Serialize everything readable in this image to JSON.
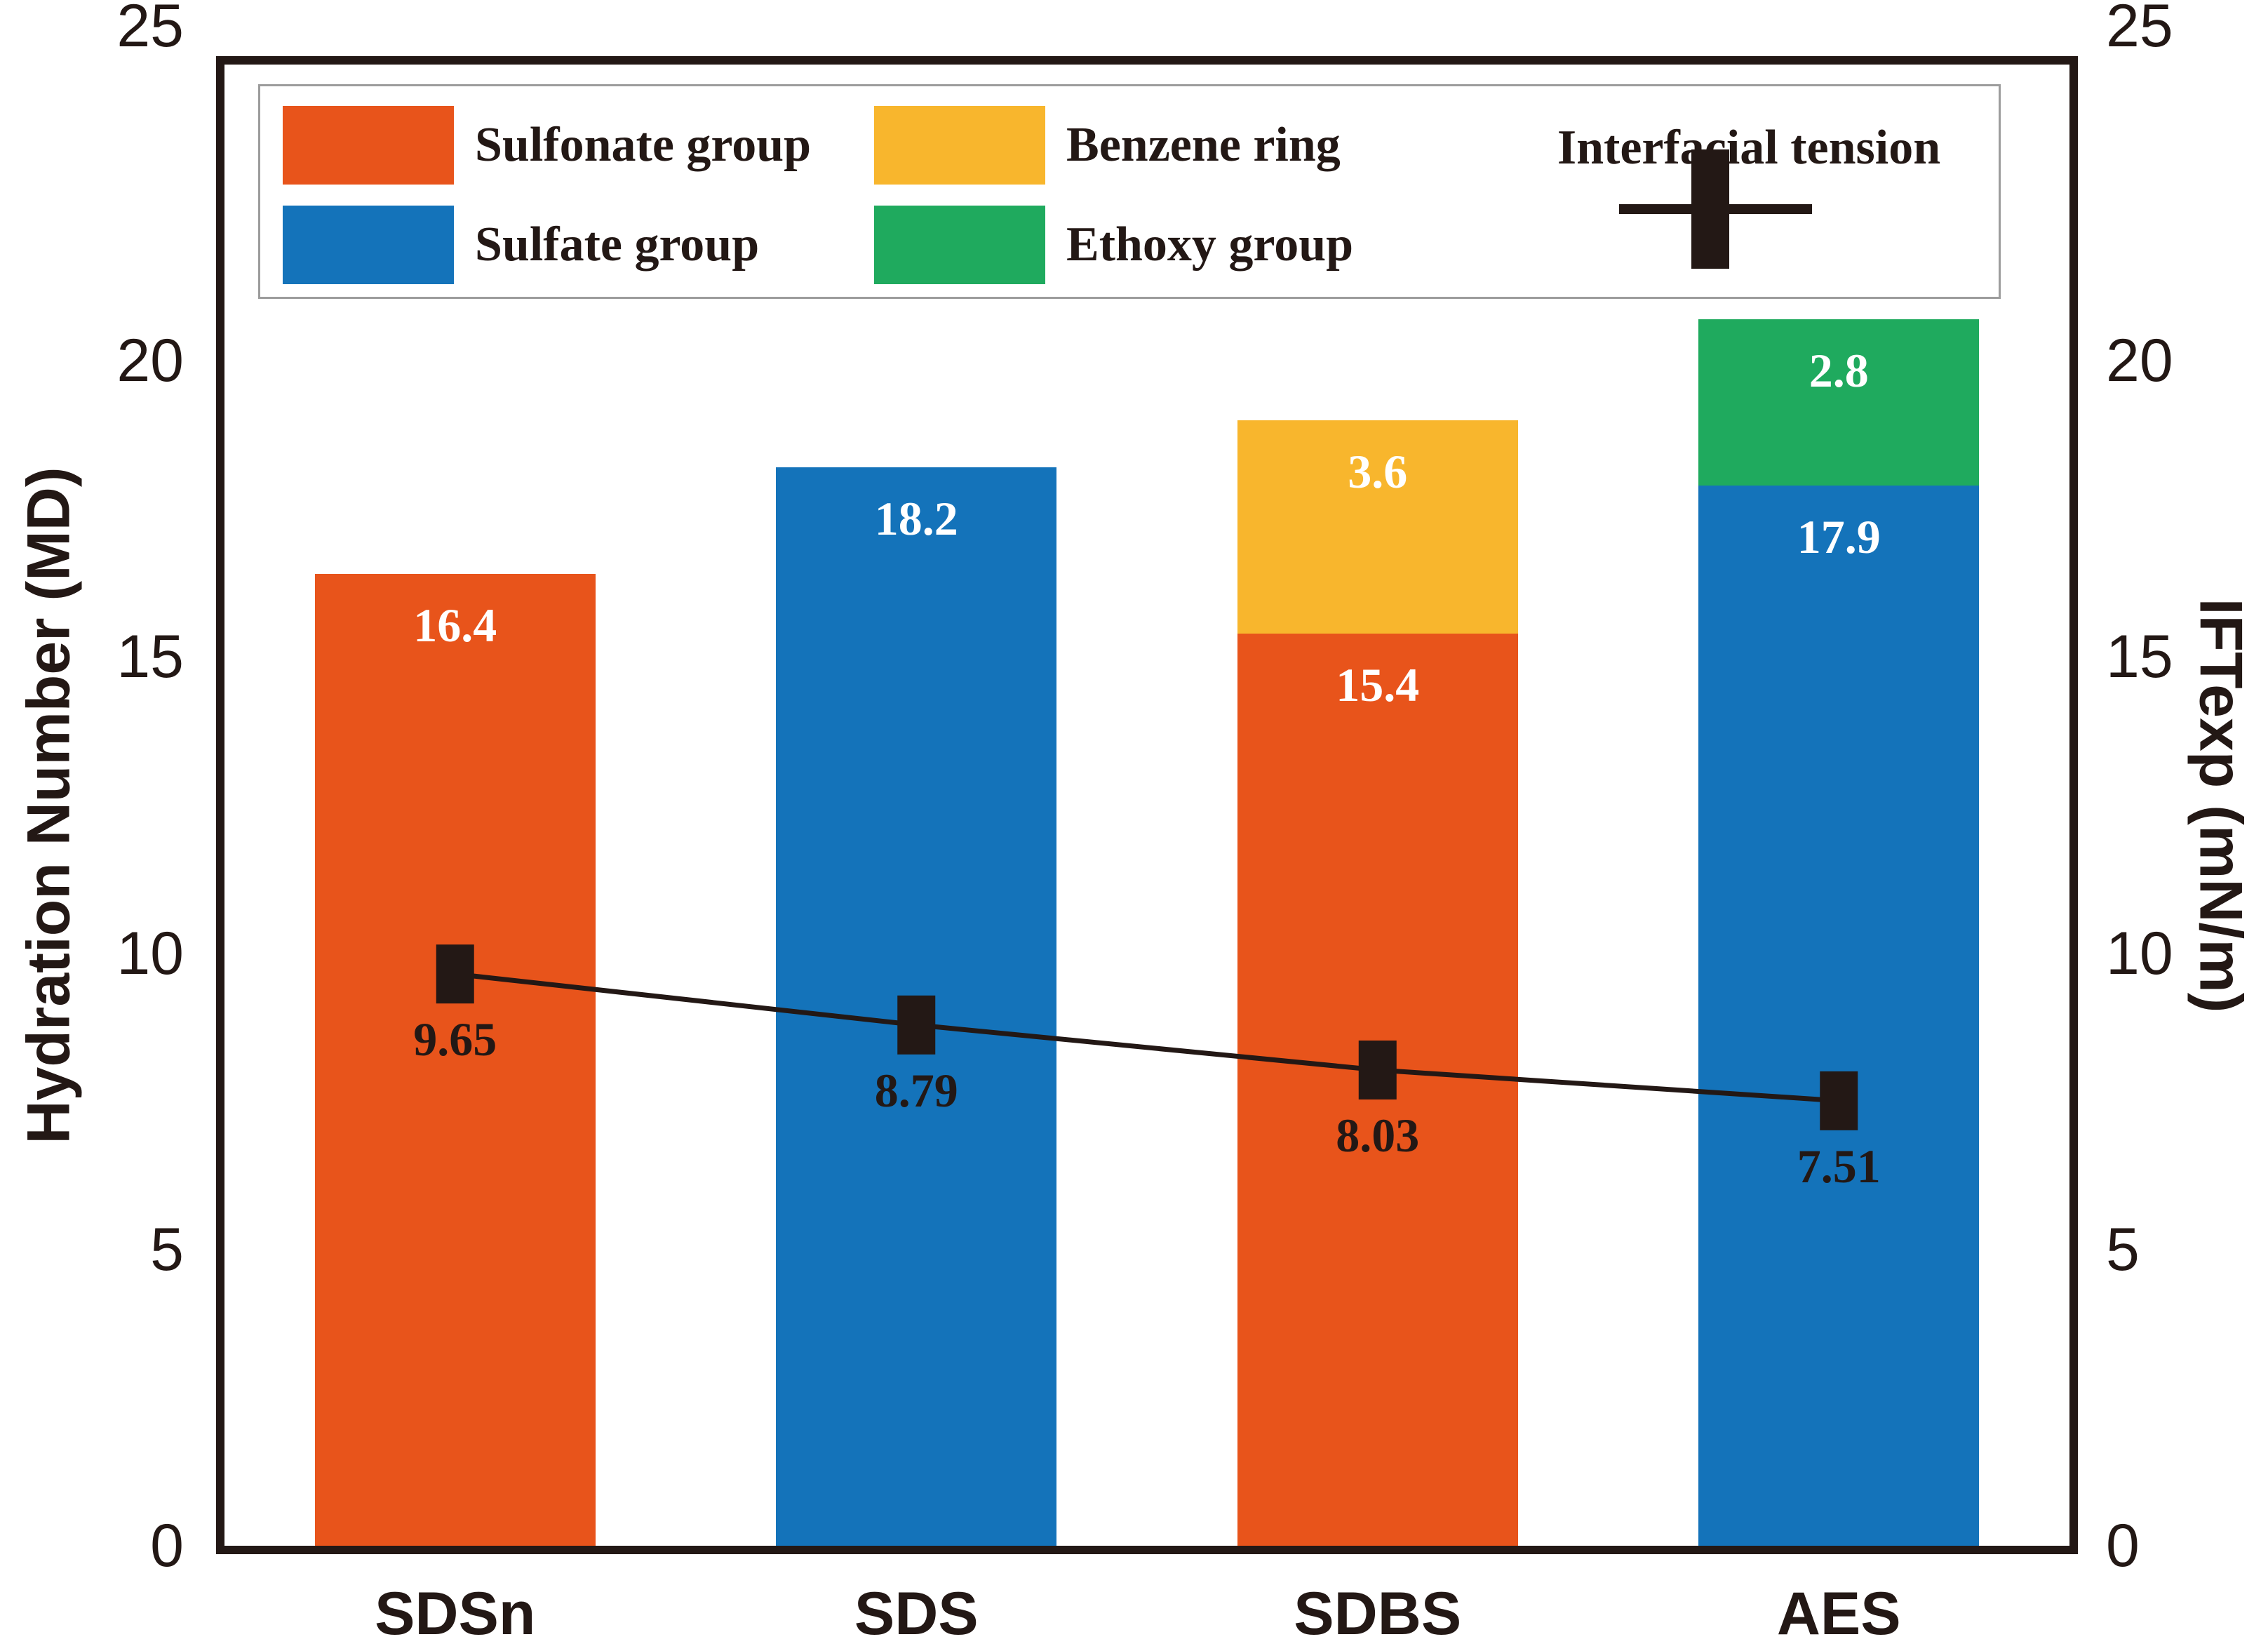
{
  "figure": {
    "background": "#ffffff",
    "frame_color": "#231815",
    "text_color": "#231815",
    "legend_border_color": "#9c9c9c"
  },
  "chart_data": {
    "type": "bar",
    "subtype": "stacked-bars-with-line-overlay",
    "grid": false,
    "legend_position": "top-inside",
    "categories": [
      "SDSn",
      "SDS",
      "SDBS",
      "AES"
    ],
    "y_left": {
      "label": "Hydration Number (MD)",
      "min": 0,
      "max": 25,
      "ticks": [
        0,
        5,
        10,
        15,
        20,
        25
      ]
    },
    "y_right": {
      "label": "IFTexp (mN/m)",
      "min": 0,
      "max": 25,
      "ticks": [
        0,
        5,
        10,
        15,
        20,
        25
      ]
    },
    "bar_series": [
      {
        "name": "Sulfonate group",
        "color": "#e8541b",
        "values": [
          16.4,
          0,
          15.4,
          0
        ]
      },
      {
        "name": "Sulfate group",
        "color": "#1473ba",
        "values": [
          0,
          18.2,
          0,
          17.9
        ]
      },
      {
        "name": "Benzene ring",
        "color": "#f8b62d",
        "values": [
          0,
          0,
          3.6,
          0
        ]
      },
      {
        "name": "Ethoxy group",
        "color": "#1faa5e",
        "values": [
          0,
          0,
          0,
          2.8
        ]
      }
    ],
    "line_series": {
      "name": "Interfacial tension",
      "axis": "right",
      "color": "#231815",
      "values": [
        9.65,
        8.79,
        8.03,
        7.51
      ]
    },
    "bar_label_color": "#ffffff"
  }
}
